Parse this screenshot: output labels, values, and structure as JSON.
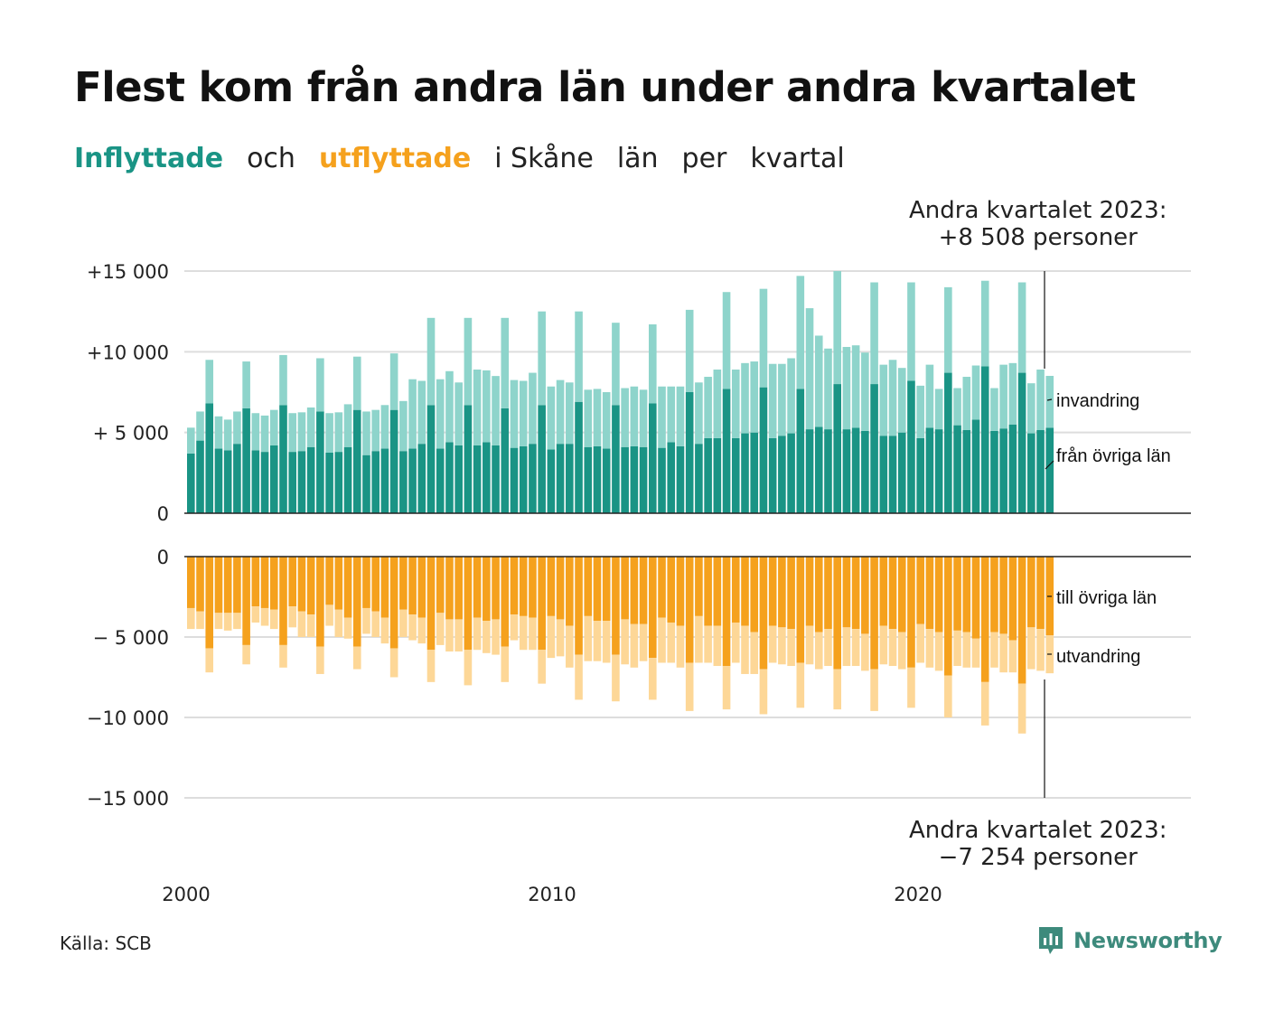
{
  "title": "Flest kom från andra län under andra kvartalet",
  "subtitle": {
    "part1": "Inflyttade",
    "part2": "och",
    "part3": "utflyttade",
    "part4": "i Skåne",
    "part5": "län",
    "part6": "per",
    "part7": "kvartal"
  },
  "annotations": {
    "top_line1": "Andra kvartalet 2023:",
    "top_line2": "+8 508 personer",
    "bottom_line1": "Andra kvartalet 2023:",
    "bottom_line2": "−7 254 personer"
  },
  "source": "Källa: SCB",
  "logo": "Newsworthy",
  "colors": {
    "in_domestic": "#1a9485",
    "in_immigration": "#8ed4cb",
    "out_domestic": "#f5a11d",
    "out_emigration": "#fdd797",
    "grid": "#dddddd",
    "axis": "#222222"
  },
  "chart_data": {
    "type": "bar",
    "x_labels": [
      "2000",
      "2010",
      "2020"
    ],
    "top_panel": {
      "y_ticks": [
        "+15 000",
        "+10 000",
        "+ 5 000",
        "0"
      ],
      "ylim": [
        0,
        15000
      ],
      "series_labels": [
        "invandring",
        "från övriga län"
      ],
      "from_other_counties": [
        3700,
        4500,
        6800,
        4000,
        3900,
        4300,
        6500,
        3900,
        3800,
        4200,
        6700,
        3800,
        3850,
        4100,
        6300,
        3750,
        3800,
        4100,
        6400,
        3600,
        3850,
        4000,
        6400,
        3850,
        4000,
        4300,
        6700,
        4000,
        4400,
        4200,
        6700,
        4200,
        4400,
        4200,
        6500,
        4050,
        4150,
        4300,
        6700,
        3950,
        4300,
        4300,
        6900,
        4100,
        4150,
        4000,
        6700,
        4100,
        4150,
        4100,
        6800,
        4050,
        4400,
        4150,
        7500,
        4300,
        4650,
        4650,
        7700,
        4650,
        4950,
        5000,
        7800,
        4650,
        4800,
        4950,
        7700,
        5200,
        5350,
        5200,
        8000,
        5200,
        5300,
        5100,
        8000,
        4800,
        4800,
        5000,
        8200,
        4650,
        5300,
        5200,
        8700,
        5450,
        5150,
        5800,
        9100,
        5100,
        5250,
        5500,
        8700,
        4950,
        5150,
        5300
      ],
      "immigration": [
        1600,
        1800,
        2700,
        2000,
        1900,
        2000,
        2900,
        2300,
        2250,
        2200,
        3100,
        2400,
        2400,
        2450,
        3300,
        2450,
        2450,
        2650,
        3300,
        2700,
        2550,
        2700,
        3500,
        3100,
        4300,
        3900,
        5400,
        4300,
        4400,
        3900,
        5400,
        4700,
        4450,
        4300,
        5600,
        4200,
        4050,
        4400,
        5800,
        3900,
        3950,
        3800,
        5600,
        3550,
        3550,
        3500,
        5100,
        3650,
        3700,
        3550,
        4900,
        3800,
        3450,
        3700,
        5100,
        3800,
        3800,
        4250,
        6000,
        4250,
        4350,
        4400,
        6100,
        4600,
        4450,
        4650,
        7000,
        7500,
        5650,
        5000,
        7000,
        5100,
        5100,
        4850,
        6300,
        4400,
        4700,
        4000,
        6100,
        3250,
        3900,
        2500,
        5300,
        2300,
        3300,
        3350,
        5300,
        2650,
        3950,
        3800,
        5600,
        3100,
        3750,
        3208
      ]
    },
    "bottom_panel": {
      "y_ticks": [
        "0",
        "− 5 000",
        "−10 000",
        "−15 000"
      ],
      "ylim": [
        -15000,
        0
      ],
      "series_labels": [
        "till övriga län",
        "utvandring"
      ],
      "to_other_counties": [
        -3200,
        -3400,
        -5700,
        -3500,
        -3500,
        -3500,
        -5500,
        -3100,
        -3200,
        -3300,
        -5500,
        -3100,
        -3400,
        -3600,
        -5600,
        -3000,
        -3300,
        -3800,
        -5600,
        -3200,
        -3400,
        -3800,
        -5700,
        -3300,
        -3600,
        -3800,
        -5800,
        -3500,
        -3900,
        -3900,
        -5800,
        -3800,
        -4000,
        -3900,
        -5600,
        -3600,
        -3700,
        -3800,
        -5800,
        -3700,
        -3900,
        -4300,
        -6100,
        -3700,
        -4000,
        -4000,
        -6100,
        -3900,
        -4200,
        -4200,
        -6300,
        -3800,
        -4100,
        -4300,
        -6600,
        -3700,
        -4300,
        -4300,
        -6800,
        -4100,
        -4300,
        -4700,
        -7000,
        -4300,
        -4400,
        -4500,
        -6600,
        -4300,
        -4700,
        -4500,
        -7000,
        -4400,
        -4500,
        -4800,
        -7000,
        -4300,
        -4500,
        -4700,
        -6900,
        -4200,
        -4500,
        -4700,
        -7400,
        -4600,
        -4700,
        -5100,
        -7800,
        -4700,
        -4800,
        -5200,
        -7900,
        -4400,
        -4500,
        -4900
      ],
      "emigration": [
        -1300,
        -1100,
        -1500,
        -1000,
        -1100,
        -1000,
        -1200,
        -1000,
        -1100,
        -1200,
        -1400,
        -1300,
        -1600,
        -1400,
        -1700,
        -1300,
        -1700,
        -1300,
        -1400,
        -1600,
        -1600,
        -1600,
        -1800,
        -1700,
        -1600,
        -1600,
        -2000,
        -2000,
        -2000,
        -2000,
        -2200,
        -2000,
        -2000,
        -2200,
        -2200,
        -1600,
        -2100,
        -2000,
        -2100,
        -2600,
        -2300,
        -2600,
        -2800,
        -2800,
        -2500,
        -2600,
        -2900,
        -2800,
        -2700,
        -2300,
        -2600,
        -2800,
        -2500,
        -2600,
        -3000,
        -2900,
        -2300,
        -2500,
        -2700,
        -2500,
        -3000,
        -2600,
        -2800,
        -2300,
        -2300,
        -2300,
        -2800,
        -2400,
        -2300,
        -2300,
        -2500,
        -2400,
        -2300,
        -2300,
        -2600,
        -2400,
        -2300,
        -2300,
        -2500,
        -2400,
        -2400,
        -2400,
        -2600,
        -2200,
        -2200,
        -1800,
        -2700,
        -2200,
        -2400,
        -2000,
        -3100,
        -2600,
        -2600,
        -2354
      ]
    },
    "grid": true,
    "legend": "inline labels at right"
  }
}
